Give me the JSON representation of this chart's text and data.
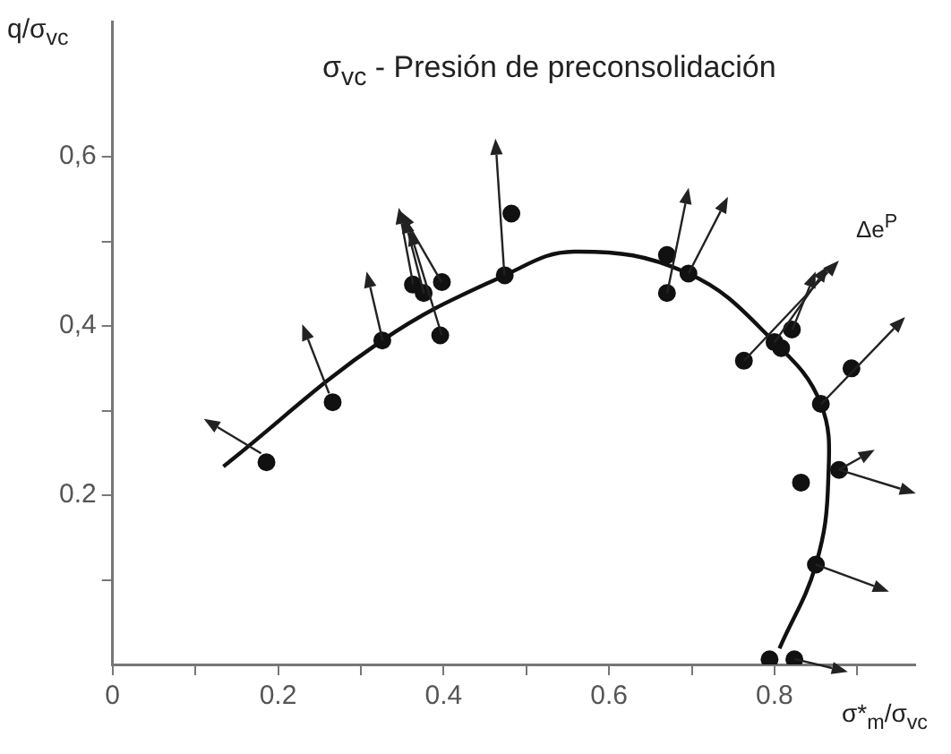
{
  "chart_data": {
    "type": "scatter",
    "title": "σ$_{vc}$ - Presión de preconsolidación",
    "xlabel": "σ*$_{m}$/σ$_{vc}$",
    "ylabel": "q/σ$_{vc}$",
    "annotations": [
      "Δe$^{P}$"
    ],
    "series": [
      {
        "color": "#111111",
        "marker": "circle",
        "x": [
          0.186,
          0.266,
          0.326,
          0.363,
          0.376,
          0.398,
          0.396,
          0.474,
          0.482,
          0.67,
          0.67,
          0.696,
          0.763,
          0.8,
          0.808,
          0.821,
          0.893,
          0.856,
          0.832,
          0.878,
          0.85,
          0.794,
          0.824
        ],
        "values": [
          0.239,
          0.31,
          0.383,
          0.449,
          0.439,
          0.452,
          0.389,
          0.46,
          0.533,
          0.439,
          0.484,
          0.462,
          0.359,
          0.381,
          0.374,
          0.396,
          0.35,
          0.308,
          0.215,
          0.23,
          0.118,
          0.006,
          0.006
        ]
      },
      {
        "type": "line",
        "color": "#111111",
        "marker": "none",
        "x": [
          0.134,
          0.326,
          0.474,
          0.558,
          0.696,
          0.8,
          0.856,
          0.865,
          0.85,
          0.806
        ],
        "values": [
          0.234,
          0.383,
          0.46,
          0.488,
          0.462,
          0.381,
          0.308,
          0.219,
          0.118,
          0.019
        ]
      }
    ],
    "xlim": [
      0,
      0.97
    ],
    "ylim": [
      0,
      0.76
    ],
    "xticks": [
      {
        "value": 0,
        "label": "0"
      },
      {
        "value": 0.1,
        "label": null
      },
      {
        "value": 0.2,
        "label": "0.2"
      },
      {
        "value": 0.3,
        "label": null
      },
      {
        "value": 0.4,
        "label": "0.4"
      },
      {
        "value": 0.5,
        "label": null
      },
      {
        "value": 0.6,
        "label": "0.6"
      },
      {
        "value": 0.7,
        "label": null
      },
      {
        "value": 0.8,
        "label": "0.8"
      },
      {
        "value": 0.9,
        "label": null
      }
    ],
    "yticks": [
      {
        "value": 0.1,
        "label": null
      },
      {
        "value": 0.2,
        "label": "0.2"
      },
      {
        "value": 0.3,
        "label": null
      },
      {
        "value": 0.4,
        "label": "0,4"
      },
      {
        "value": 0.5,
        "label": null
      },
      {
        "value": 0.6,
        "label": "0,6"
      }
    ],
    "grid": false,
    "legend": false
  }
}
